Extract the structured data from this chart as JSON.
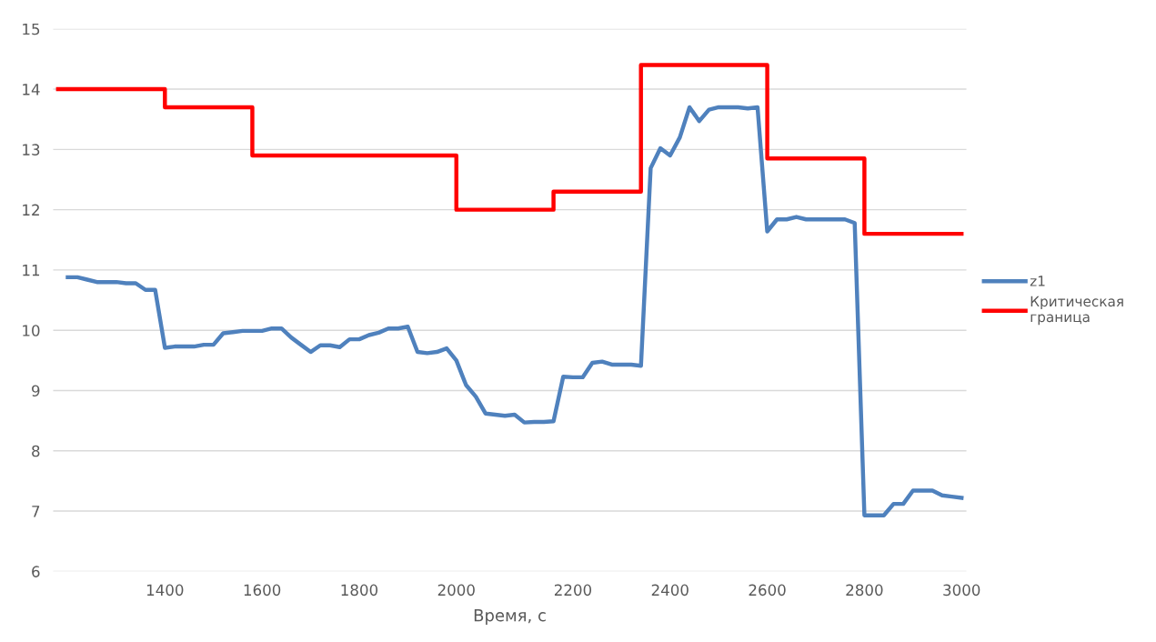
{
  "chart_data": {
    "type": "line",
    "xlabel": "Время, с",
    "categories": [
      null,
      null,
      null,
      null,
      null,
      null,
      null,
      null,
      null,
      null,
      null,
      "1400",
      null,
      null,
      null,
      null,
      null,
      null,
      null,
      null,
      null,
      "1600",
      null,
      null,
      null,
      null,
      null,
      null,
      null,
      null,
      null,
      "1800",
      null,
      null,
      null,
      null,
      null,
      null,
      null,
      null,
      null,
      "2000",
      null,
      null,
      null,
      null,
      null,
      null,
      null,
      null,
      null,
      null,
      null,
      "2200",
      null,
      null,
      null,
      null,
      null,
      null,
      null,
      null,
      null,
      "2400",
      null,
      null,
      null,
      null,
      null,
      null,
      null,
      null,
      null,
      "2600",
      null,
      null,
      null,
      null,
      null,
      null,
      null,
      null,
      null,
      "2800",
      null,
      null,
      null,
      null,
      null,
      null,
      null,
      null,
      null,
      "3000"
    ],
    "ylim": [
      6,
      15
    ],
    "yticks": [
      6,
      7,
      8,
      9,
      10,
      11,
      12,
      13,
      14,
      15
    ],
    "grid": "y",
    "legend": "right",
    "series": [
      {
        "name": "z1",
        "type": "line",
        "color": "#4f81bd",
        "values": [
          null,
          10.88,
          10.88,
          10.84,
          10.8,
          10.8,
          10.8,
          10.78,
          10.78,
          10.67,
          10.67,
          9.71,
          9.73,
          9.73,
          9.73,
          9.76,
          9.76,
          9.95,
          9.97,
          9.99,
          9.99,
          9.99,
          10.03,
          10.03,
          9.88,
          9.76,
          9.64,
          9.75,
          9.75,
          9.72,
          9.85,
          9.85,
          9.92,
          9.96,
          10.03,
          10.03,
          10.06,
          9.64,
          9.62,
          9.64,
          9.7,
          9.5,
          9.09,
          8.9,
          8.62,
          8.6,
          8.58,
          8.6,
          8.47,
          8.48,
          8.48,
          8.49,
          9.23,
          9.22,
          9.22,
          9.46,
          9.48,
          9.43,
          9.43,
          9.43,
          9.41,
          12.69,
          13.02,
          12.9,
          13.2,
          13.7,
          13.47,
          13.66,
          13.7,
          13.7,
          13.7,
          13.68,
          13.7,
          11.64,
          11.84,
          11.84,
          11.88,
          11.84,
          11.84,
          11.84,
          11.84,
          11.84,
          11.78,
          6.93,
          6.93,
          6.93,
          7.12,
          7.12,
          7.34,
          7.34,
          7.34,
          7.26,
          7.24,
          7.22
        ]
      },
      {
        "name": "Критическая\nграница",
        "type": "step",
        "color": "#ff0000",
        "values": [
          14,
          14,
          14,
          14,
          14,
          14,
          14,
          14,
          14,
          14,
          14,
          13.7,
          13.7,
          13.7,
          13.7,
          13.7,
          13.7,
          13.7,
          13.7,
          13.7,
          12.9,
          12.9,
          12.9,
          12.9,
          12.9,
          12.9,
          12.9,
          12.9,
          12.9,
          12.9,
          12.9,
          12.9,
          12.9,
          12.9,
          12.9,
          12.9,
          12.9,
          12.9,
          12.9,
          12.9,
          12.9,
          12,
          12,
          12,
          12,
          12,
          12,
          12,
          12,
          12,
          12,
          12.3,
          12.3,
          12.3,
          12.3,
          12.3,
          12.3,
          12.3,
          12.3,
          12.3,
          14.4,
          14.4,
          14.4,
          14.4,
          14.4,
          14.4,
          14.4,
          14.4,
          14.4,
          14.4,
          14.4,
          14.4,
          14.4,
          12.85,
          12.85,
          12.85,
          12.85,
          12.85,
          12.85,
          12.85,
          12.85,
          12.85,
          12.85,
          11.6,
          11.6,
          11.6,
          11.6,
          11.6,
          11.6,
          11.6,
          11.6,
          11.6,
          11.6,
          11.6
        ]
      }
    ]
  }
}
